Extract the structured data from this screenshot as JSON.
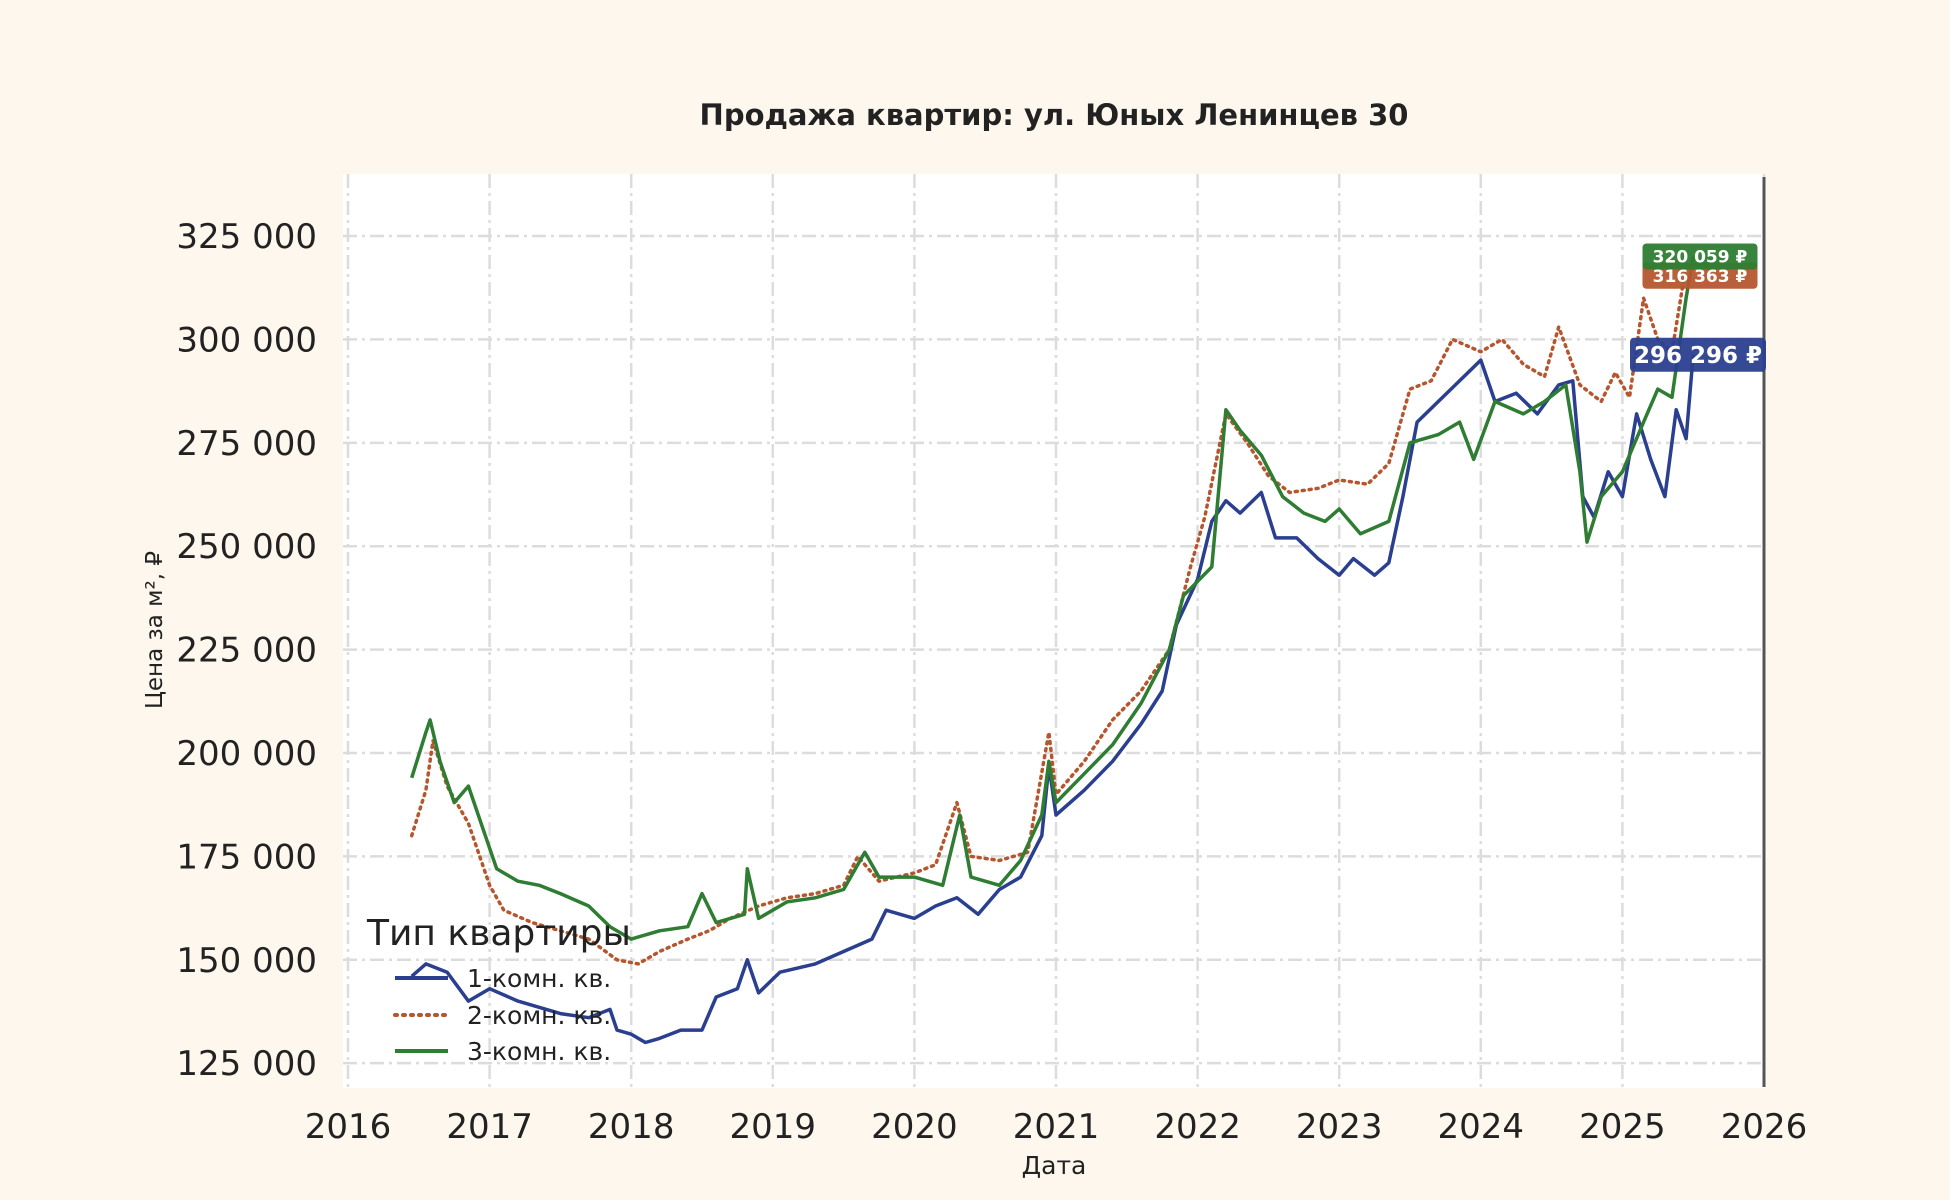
{
  "chart_data": {
    "type": "line",
    "title": "Продажа квартир: ул. Юных Ленинцев 30",
    "xlabel": "Дата",
    "ylabel": "Цена за м², ₽",
    "xlim": [
      2016,
      2026
    ],
    "ylim": [
      119000,
      340000
    ],
    "x_ticks": [
      "2016",
      "2017",
      "2018",
      "2019",
      "2020",
      "2021",
      "2022",
      "2023",
      "2024",
      "2025",
      "2026"
    ],
    "y_ticks": [
      "125 000",
      "150 000",
      "175 000",
      "200 000",
      "225 000",
      "250 000",
      "275 000",
      "300 000",
      "325 000"
    ],
    "y_tick_values": [
      125000,
      150000,
      175000,
      200000,
      225000,
      250000,
      275000,
      300000,
      325000
    ],
    "grid": true,
    "legend": {
      "title": "Тип квартиры",
      "position": "lower-left"
    },
    "series": [
      {
        "name": "1-комн. кв.",
        "color": "#2a3f8f",
        "style": "solid",
        "end_label": "296 296 ₽",
        "points": [
          [
            2016.45,
            146000
          ],
          [
            2016.55,
            149000
          ],
          [
            2016.7,
            147000
          ],
          [
            2016.85,
            140000
          ],
          [
            2017.0,
            143000
          ],
          [
            2017.2,
            140000
          ],
          [
            2017.5,
            137000
          ],
          [
            2017.7,
            136000
          ],
          [
            2017.85,
            138000
          ],
          [
            2017.9,
            133000
          ],
          [
            2018.0,
            132000
          ],
          [
            2018.1,
            130000
          ],
          [
            2018.2,
            131000
          ],
          [
            2018.35,
            133000
          ],
          [
            2018.5,
            133000
          ],
          [
            2018.6,
            141000
          ],
          [
            2018.75,
            143000
          ],
          [
            2018.82,
            150000
          ],
          [
            2018.9,
            142000
          ],
          [
            2019.05,
            147000
          ],
          [
            2019.3,
            149000
          ],
          [
            2019.5,
            152000
          ],
          [
            2019.7,
            155000
          ],
          [
            2019.8,
            162000
          ],
          [
            2020.0,
            160000
          ],
          [
            2020.15,
            163000
          ],
          [
            2020.3,
            165000
          ],
          [
            2020.45,
            161000
          ],
          [
            2020.6,
            167000
          ],
          [
            2020.75,
            170000
          ],
          [
            2020.9,
            180000
          ],
          [
            2020.95,
            197000
          ],
          [
            2021.0,
            185000
          ],
          [
            2021.2,
            191000
          ],
          [
            2021.4,
            198000
          ],
          [
            2021.6,
            207000
          ],
          [
            2021.75,
            215000
          ],
          [
            2021.85,
            231000
          ],
          [
            2022.0,
            242000
          ],
          [
            2022.1,
            256000
          ],
          [
            2022.2,
            261000
          ],
          [
            2022.3,
            258000
          ],
          [
            2022.45,
            263000
          ],
          [
            2022.55,
            252000
          ],
          [
            2022.7,
            252000
          ],
          [
            2022.85,
            247000
          ],
          [
            2023.0,
            243000
          ],
          [
            2023.1,
            247000
          ],
          [
            2023.25,
            243000
          ],
          [
            2023.35,
            246000
          ],
          [
            2023.45,
            262000
          ],
          [
            2023.55,
            280000
          ],
          [
            2023.7,
            285000
          ],
          [
            2023.85,
            290000
          ],
          [
            2024.0,
            295000
          ],
          [
            2024.1,
            285000
          ],
          [
            2024.25,
            287000
          ],
          [
            2024.4,
            282000
          ],
          [
            2024.55,
            289000
          ],
          [
            2024.65,
            290000
          ],
          [
            2024.72,
            262000
          ],
          [
            2024.8,
            257000
          ],
          [
            2024.9,
            268000
          ],
          [
            2025.0,
            262000
          ],
          [
            2025.1,
            282000
          ],
          [
            2025.2,
            271000
          ],
          [
            2025.3,
            262000
          ],
          [
            2025.38,
            283000
          ],
          [
            2025.45,
            276000
          ],
          [
            2025.5,
            296296
          ]
        ]
      },
      {
        "name": "2-комн. кв.",
        "color": "#b5562e",
        "style": "dotted",
        "end_label": "316 363 ₽",
        "points": [
          [
            2016.45,
            180000
          ],
          [
            2016.55,
            191000
          ],
          [
            2016.6,
            203000
          ],
          [
            2016.7,
            192000
          ],
          [
            2016.85,
            183000
          ],
          [
            2017.0,
            168000
          ],
          [
            2017.1,
            162000
          ],
          [
            2017.3,
            159000
          ],
          [
            2017.5,
            157000
          ],
          [
            2017.7,
            155000
          ],
          [
            2017.9,
            150000
          ],
          [
            2018.05,
            149000
          ],
          [
            2018.2,
            152000
          ],
          [
            2018.4,
            155000
          ],
          [
            2018.55,
            157000
          ],
          [
            2018.7,
            160000
          ],
          [
            2018.9,
            163000
          ],
          [
            2019.1,
            165000
          ],
          [
            2019.3,
            166000
          ],
          [
            2019.5,
            168000
          ],
          [
            2019.6,
            175000
          ],
          [
            2019.75,
            169000
          ],
          [
            2020.0,
            171000
          ],
          [
            2020.15,
            173000
          ],
          [
            2020.3,
            188000
          ],
          [
            2020.4,
            175000
          ],
          [
            2020.6,
            174000
          ],
          [
            2020.8,
            176000
          ],
          [
            2020.95,
            205000
          ],
          [
            2021.0,
            190000
          ],
          [
            2021.2,
            198000
          ],
          [
            2021.4,
            208000
          ],
          [
            2021.6,
            215000
          ],
          [
            2021.8,
            225000
          ],
          [
            2021.95,
            245000
          ],
          [
            2022.05,
            257000
          ],
          [
            2022.2,
            282000
          ],
          [
            2022.35,
            275000
          ],
          [
            2022.5,
            267000
          ],
          [
            2022.65,
            263000
          ],
          [
            2022.85,
            264000
          ],
          [
            2023.0,
            266000
          ],
          [
            2023.2,
            265000
          ],
          [
            2023.35,
            270000
          ],
          [
            2023.5,
            288000
          ],
          [
            2023.65,
            290000
          ],
          [
            2023.8,
            300000
          ],
          [
            2024.0,
            297000
          ],
          [
            2024.15,
            300000
          ],
          [
            2024.3,
            294000
          ],
          [
            2024.45,
            291000
          ],
          [
            2024.55,
            303000
          ],
          [
            2024.7,
            289000
          ],
          [
            2024.85,
            285000
          ],
          [
            2024.95,
            292000
          ],
          [
            2025.05,
            286000
          ],
          [
            2025.15,
            310000
          ],
          [
            2025.25,
            300000
          ],
          [
            2025.35,
            297000
          ],
          [
            2025.45,
            318000
          ],
          [
            2025.5,
            316363
          ]
        ]
      },
      {
        "name": "3-комн. кв.",
        "color": "#2e7d32",
        "style": "solid",
        "end_label": "320 059 ₽",
        "points": [
          [
            2016.45,
            194000
          ],
          [
            2016.55,
            205000
          ],
          [
            2016.58,
            208000
          ],
          [
            2016.65,
            198000
          ],
          [
            2016.75,
            188000
          ],
          [
            2016.85,
            192000
          ],
          [
            2016.95,
            182000
          ],
          [
            2017.05,
            172000
          ],
          [
            2017.2,
            169000
          ],
          [
            2017.35,
            168000
          ],
          [
            2017.5,
            166000
          ],
          [
            2017.7,
            163000
          ],
          [
            2017.85,
            158000
          ],
          [
            2018.0,
            155000
          ],
          [
            2018.2,
            157000
          ],
          [
            2018.4,
            158000
          ],
          [
            2018.5,
            166000
          ],
          [
            2018.6,
            159000
          ],
          [
            2018.8,
            161000
          ],
          [
            2018.82,
            172000
          ],
          [
            2018.9,
            160000
          ],
          [
            2019.1,
            164000
          ],
          [
            2019.3,
            165000
          ],
          [
            2019.5,
            167000
          ],
          [
            2019.65,
            176000
          ],
          [
            2019.75,
            170000
          ],
          [
            2020.0,
            170000
          ],
          [
            2020.2,
            168000
          ],
          [
            2020.32,
            185000
          ],
          [
            2020.4,
            170000
          ],
          [
            2020.6,
            168000
          ],
          [
            2020.75,
            174000
          ],
          [
            2020.9,
            185000
          ],
          [
            2020.95,
            198000
          ],
          [
            2021.0,
            188000
          ],
          [
            2021.2,
            195000
          ],
          [
            2021.4,
            202000
          ],
          [
            2021.6,
            212000
          ],
          [
            2021.8,
            225000
          ],
          [
            2021.9,
            238000
          ],
          [
            2022.1,
            245000
          ],
          [
            2022.2,
            283000
          ],
          [
            2022.3,
            278000
          ],
          [
            2022.45,
            272000
          ],
          [
            2022.6,
            262000
          ],
          [
            2022.75,
            258000
          ],
          [
            2022.9,
            256000
          ],
          [
            2023.0,
            259000
          ],
          [
            2023.15,
            253000
          ],
          [
            2023.35,
            256000
          ],
          [
            2023.5,
            275000
          ],
          [
            2023.7,
            277000
          ],
          [
            2023.85,
            280000
          ],
          [
            2023.95,
            271000
          ],
          [
            2024.1,
            285000
          ],
          [
            2024.3,
            282000
          ],
          [
            2024.45,
            285000
          ],
          [
            2024.6,
            289000
          ],
          [
            2024.7,
            268000
          ],
          [
            2024.75,
            251000
          ],
          [
            2024.85,
            262000
          ],
          [
            2025.0,
            268000
          ],
          [
            2025.15,
            280000
          ],
          [
            2025.25,
            288000
          ],
          [
            2025.35,
            286000
          ],
          [
            2025.45,
            310000
          ],
          [
            2025.5,
            320059
          ]
        ]
      }
    ]
  }
}
